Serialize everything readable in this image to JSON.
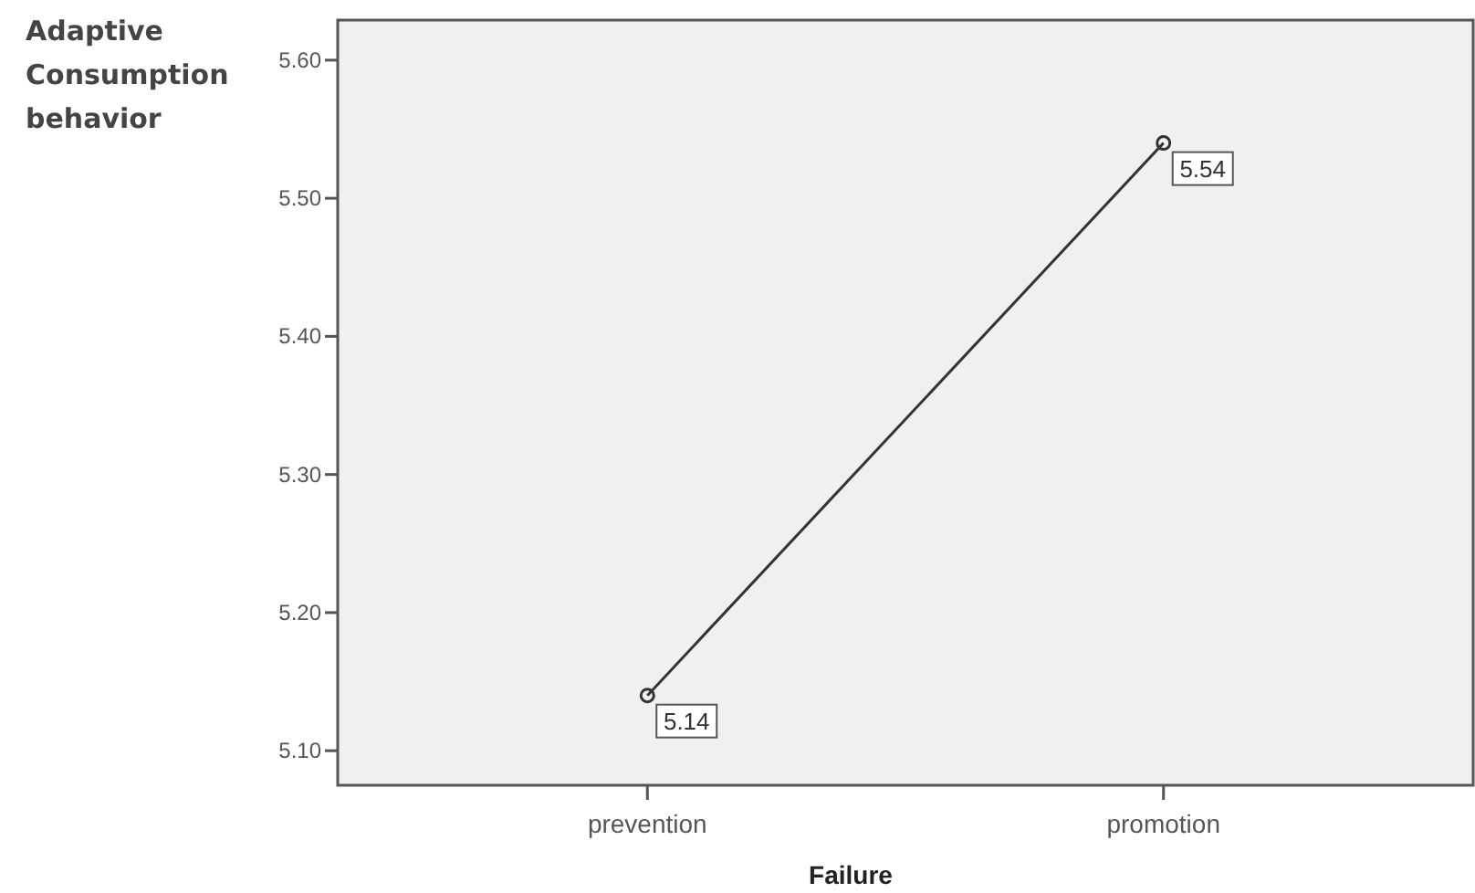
{
  "chart_data": {
    "type": "line",
    "xlabel": "Failure",
    "ylabel": "Adaptive Consumption behavior",
    "categories": [
      "prevention",
      "promotion"
    ],
    "series": [
      {
        "color": "#333333",
        "values": [
          5.14,
          5.54
        ]
      }
    ],
    "ylim": [
      5.075,
      5.629
    ],
    "yticks": [
      {
        "value": 5.1,
        "label": "5.10"
      },
      {
        "value": 5.2,
        "label": "5.20"
      },
      {
        "value": 5.3,
        "label": "5.30"
      },
      {
        "value": 5.4,
        "label": "5.40"
      },
      {
        "value": 5.5,
        "label": "5.50"
      },
      {
        "value": 5.6,
        "label": "5.60"
      }
    ],
    "marker": "circle",
    "data_labels": true,
    "grid": false
  }
}
